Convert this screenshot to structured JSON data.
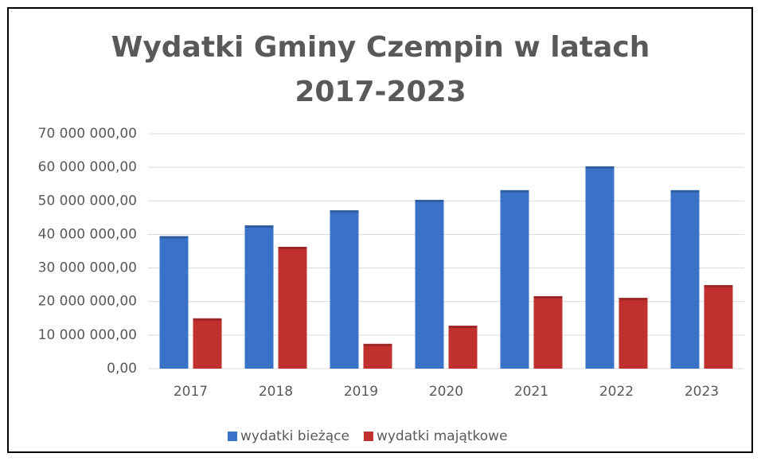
{
  "chart_data": {
    "type": "bar",
    "title": "Wydatki Gminy Czempin  w latach 2017-2023",
    "categories": [
      "2017",
      "2018",
      "2019",
      "2020",
      "2021",
      "2022",
      "2023"
    ],
    "series": [
      {
        "name": "wydatki bieżące",
        "color": "#3a72c8",
        "values": [
          39500000,
          42700000,
          47200000,
          50300000,
          53200000,
          60300000,
          53200000
        ]
      },
      {
        "name": "wydatki majątkowe",
        "color": "#c0302e",
        "values": [
          15000000,
          36300000,
          7400000,
          12800000,
          21600000,
          21100000,
          24900000
        ]
      }
    ],
    "ylim": [
      0,
      70000000
    ],
    "yticks": [
      {
        "value": 0,
        "label": "0,00"
      },
      {
        "value": 10000000,
        "label": "10 000 000,00"
      },
      {
        "value": 20000000,
        "label": "20 000 000,00"
      },
      {
        "value": 30000000,
        "label": "30 000 000,00"
      },
      {
        "value": 40000000,
        "label": "40 000 000,00"
      },
      {
        "value": 50000000,
        "label": "50 000 000,00"
      },
      {
        "value": 60000000,
        "label": "60 000 000,00"
      },
      {
        "value": 70000000,
        "label": "70 000 000,00"
      }
    ],
    "grid": true,
    "legend": "bottom"
  }
}
